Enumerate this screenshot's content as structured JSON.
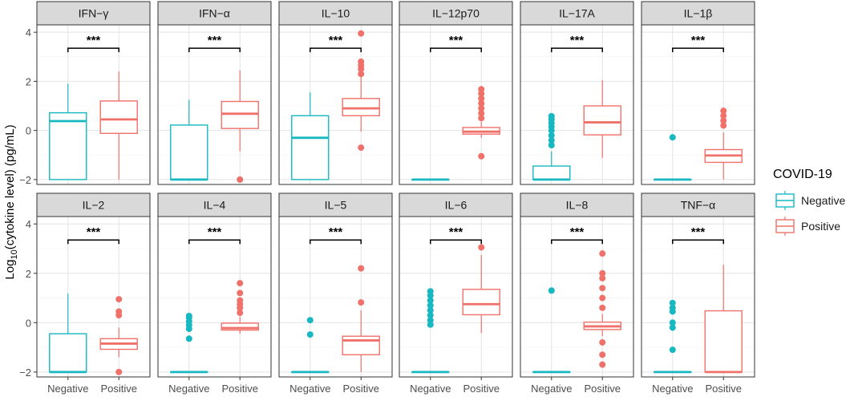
{
  "chart_data": {
    "type": "boxplot",
    "layout": "faceted 2 rows x 6 columns",
    "ylabel_prefix": "Log",
    "ylabel_sub": "10",
    "ylabel_suffix": "(cytokine level) (pg/mL)",
    "ylim": [
      -2.2,
      4.3
    ],
    "yticks": [
      -2,
      0,
      2,
      4
    ],
    "categories": [
      "Negative",
      "Positive"
    ],
    "legend": {
      "title": "COVID-19",
      "position": "right",
      "entries": [
        {
          "name": "Negative",
          "color": "#17B8C2"
        },
        {
          "name": "Positive",
          "color": "#F0716A"
        }
      ]
    },
    "significance_label": "***",
    "panels": [
      {
        "title": "IFN−γ",
        "signif": "***",
        "Negative": {
          "whisker_low": -2.0,
          "q1": -2.0,
          "median": 0.38,
          "q3": 0.72,
          "whisker_high": 1.9,
          "outliers": []
        },
        "Positive": {
          "whisker_low": -2.0,
          "q1": -0.12,
          "median": 0.45,
          "q3": 1.2,
          "whisker_high": 2.4,
          "outliers": []
        }
      },
      {
        "title": "IFN−α",
        "signif": "***",
        "Negative": {
          "whisker_low": -2.0,
          "q1": -2.0,
          "median": -2.0,
          "q3": 0.22,
          "whisker_high": 1.25,
          "outliers": []
        },
        "Positive": {
          "whisker_low": -0.85,
          "q1": 0.08,
          "median": 0.68,
          "q3": 1.18,
          "whisker_high": 2.45,
          "outliers": [
            -2.0
          ]
        }
      },
      {
        "title": "IL−10",
        "signif": "***",
        "Negative": {
          "whisker_low": -2.0,
          "q1": -2.0,
          "median": -0.3,
          "q3": 0.6,
          "whisker_high": 1.55,
          "outliers": []
        },
        "Positive": {
          "whisker_low": -0.05,
          "q1": 0.6,
          "median": 0.9,
          "q3": 1.3,
          "whisker_high": 2.2,
          "outliers": [
            -0.7,
            2.3,
            2.5,
            2.65,
            2.8,
            3.95
          ]
        }
      },
      {
        "title": "IL−12p70",
        "signif": "***",
        "Negative": {
          "whisker_low": -2.0,
          "q1": -2.0,
          "median": -2.0,
          "q3": -2.0,
          "whisker_high": -2.0,
          "outliers": []
        },
        "Positive": {
          "whisker_low": -0.3,
          "q1": -0.15,
          "median": -0.05,
          "q3": 0.12,
          "whisker_high": 0.35,
          "outliers": [
            -1.05,
            0.5,
            0.7,
            0.9,
            1.1,
            1.3,
            1.5,
            1.68
          ]
        }
      },
      {
        "title": "IL−17A",
        "signif": "***",
        "Negative": {
          "whisker_low": -2.0,
          "q1": -2.0,
          "median": -2.0,
          "q3": -1.45,
          "whisker_high": -0.85,
          "outliers": [
            -0.6,
            -0.4,
            -0.2,
            0.0,
            0.15,
            0.3,
            0.45,
            0.58
          ]
        },
        "Positive": {
          "whisker_low": -1.12,
          "q1": -0.18,
          "median": 0.33,
          "q3": 1.0,
          "whisker_high": 2.05,
          "outliers": []
        }
      },
      {
        "title": "IL−1β",
        "signif": "***",
        "Negative": {
          "whisker_low": -2.0,
          "q1": -2.0,
          "median": -2.0,
          "q3": -2.0,
          "whisker_high": -2.0,
          "outliers": [
            -0.28
          ]
        },
        "Positive": {
          "whisker_low": -2.0,
          "q1": -1.3,
          "median": -1.02,
          "q3": -0.78,
          "whisker_high": -0.08,
          "outliers": [
            0.2,
            0.4,
            0.6,
            0.8
          ]
        }
      },
      {
        "title": "IL−2",
        "signif": "***",
        "Negative": {
          "whisker_low": -2.0,
          "q1": -2.0,
          "median": -2.0,
          "q3": -0.45,
          "whisker_high": 1.18,
          "outliers": []
        },
        "Positive": {
          "whisker_low": -1.4,
          "q1": -1.08,
          "median": -0.85,
          "q3": -0.65,
          "whisker_high": -0.2,
          "outliers": [
            -2.0,
            0.3,
            0.45,
            0.95
          ]
        }
      },
      {
        "title": "IL−4",
        "signif": "***",
        "Negative": {
          "whisker_low": -2.0,
          "q1": -2.0,
          "median": -2.0,
          "q3": -2.0,
          "whisker_high": -2.0,
          "outliers": [
            -0.65,
            -0.25,
            -0.1,
            0.05,
            0.2,
            0.27
          ]
        },
        "Positive": {
          "whisker_low": -0.45,
          "q1": -0.3,
          "median": -0.22,
          "q3": -0.02,
          "whisker_high": 0.25,
          "outliers": [
            0.4,
            0.6,
            0.75,
            0.9,
            1.2,
            1.6
          ]
        }
      },
      {
        "title": "IL−5",
        "signif": "***",
        "Negative": {
          "whisker_low": -2.0,
          "q1": -2.0,
          "median": -2.0,
          "q3": -2.0,
          "whisker_high": -2.0,
          "outliers": [
            -0.48,
            0.1
          ]
        },
        "Positive": {
          "whisker_low": -2.0,
          "q1": -1.3,
          "median": -0.72,
          "q3": -0.55,
          "whisker_high": 0.5,
          "outliers": [
            0.82,
            2.2
          ]
        }
      },
      {
        "title": "IL−6",
        "signif": "***",
        "Negative": {
          "whisker_low": -2.0,
          "q1": -2.0,
          "median": -2.0,
          "q3": -2.0,
          "whisker_high": -2.0,
          "outliers": [
            -0.08,
            0.1,
            0.3,
            0.5,
            0.7,
            0.9,
            1.1,
            1.27
          ]
        },
        "Positive": {
          "whisker_low": -0.42,
          "q1": 0.32,
          "median": 0.75,
          "q3": 1.35,
          "whisker_high": 2.75,
          "outliers": [
            3.05
          ]
        }
      },
      {
        "title": "IL−8",
        "signif": "***",
        "Negative": {
          "whisker_low": -2.0,
          "q1": -2.0,
          "median": -2.0,
          "q3": -2.0,
          "whisker_high": -2.0,
          "outliers": [
            1.3
          ]
        },
        "Positive": {
          "whisker_low": -0.55,
          "q1": -0.28,
          "median": -0.15,
          "q3": 0.02,
          "whisker_high": 0.35,
          "outliers": [
            -1.7,
            -1.3,
            -0.8,
            0.6,
            1.0,
            1.4,
            1.8,
            2.0,
            2.8
          ]
        }
      },
      {
        "title": "TNF−α",
        "signif": "***",
        "Negative": {
          "whisker_low": -2.0,
          "q1": -2.0,
          "median": -2.0,
          "q3": -2.0,
          "whisker_high": -2.0,
          "outliers": [
            -1.1,
            -0.2,
            0.0,
            0.45,
            0.6,
            0.8
          ]
        },
        "Positive": {
          "whisker_low": -2.0,
          "q1": -2.0,
          "median": -2.0,
          "q3": 0.48,
          "whisker_high": 2.35,
          "outliers": []
        }
      }
    ]
  }
}
